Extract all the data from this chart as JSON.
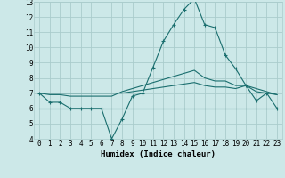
{
  "xlabel": "Humidex (Indice chaleur)",
  "background_color": "#cce8e8",
  "grid_color": "#aacccc",
  "line_color": "#1a6e6e",
  "xlim": [
    -0.5,
    23.5
  ],
  "ylim": [
    4,
    13
  ],
  "yticks": [
    4,
    5,
    6,
    7,
    8,
    9,
    10,
    11,
    12,
    13
  ],
  "xticks": [
    0,
    1,
    2,
    3,
    4,
    5,
    6,
    7,
    8,
    9,
    10,
    11,
    12,
    13,
    14,
    15,
    16,
    17,
    18,
    19,
    20,
    21,
    22,
    23
  ],
  "line1_x": [
    0,
    1,
    2,
    3,
    4,
    5,
    6,
    7,
    8,
    9,
    10,
    11,
    12,
    13,
    14,
    15,
    16,
    17,
    18,
    19,
    20,
    21,
    22,
    23
  ],
  "line1_y": [
    7.0,
    6.4,
    6.4,
    6.0,
    6.0,
    6.0,
    6.0,
    4.0,
    5.3,
    6.8,
    7.0,
    8.7,
    10.4,
    11.5,
    12.5,
    13.2,
    11.5,
    11.3,
    9.5,
    8.6,
    7.5,
    6.5,
    7.0,
    6.0
  ],
  "line2_x": [
    0,
    1,
    2,
    3,
    4,
    5,
    6,
    7,
    8,
    9,
    10,
    11,
    12,
    13,
    14,
    15,
    16,
    17,
    18,
    19,
    20,
    21,
    22,
    23
  ],
  "line2_y": [
    7.0,
    6.9,
    6.9,
    6.8,
    6.8,
    6.8,
    6.8,
    6.8,
    7.1,
    7.3,
    7.5,
    7.7,
    7.9,
    8.1,
    8.3,
    8.5,
    8.0,
    7.8,
    7.8,
    7.5,
    7.5,
    7.3,
    7.1,
    6.9
  ],
  "line3_x": [
    0,
    1,
    2,
    3,
    4,
    5,
    6,
    7,
    8,
    9,
    10,
    11,
    12,
    13,
    14,
    15,
    16,
    17,
    18,
    19,
    20,
    21,
    22,
    23
  ],
  "line3_y": [
    7.0,
    7.0,
    7.0,
    7.0,
    7.0,
    7.0,
    7.0,
    7.0,
    7.0,
    7.1,
    7.2,
    7.3,
    7.4,
    7.5,
    7.6,
    7.7,
    7.5,
    7.4,
    7.4,
    7.3,
    7.5,
    7.1,
    7.0,
    6.9
  ],
  "line4_x": [
    0,
    23
  ],
  "line4_y": [
    6.0,
    6.0
  ],
  "marker": "+",
  "markersize": 3,
  "linewidth": 0.8,
  "fontsize_ticks": 5.5,
  "fontsize_xlabel": 6.5
}
